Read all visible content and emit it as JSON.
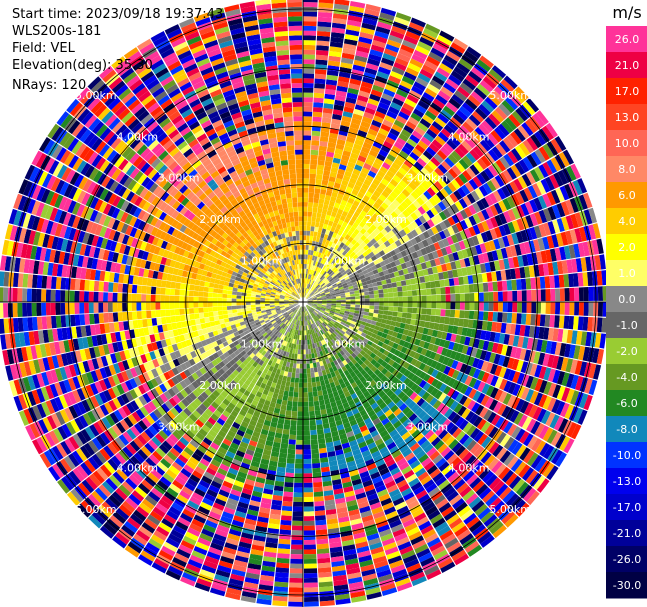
{
  "header": {
    "start_time": "Start time: 2023/09/18 19:37:43",
    "instrument": "WLS200s-181",
    "field": "Field: VEL",
    "elevation": "Elevation(deg): 35.30",
    "nrays": "NRays: 120"
  },
  "chart_data": {
    "type": "heatmap",
    "projection": "polar-ppi",
    "field": "VEL",
    "n_rays": 120,
    "range_rings_km": [
      1,
      2,
      3,
      4,
      5
    ],
    "range_ring_labels": [
      "1.00km",
      "2.00km",
      "3.00km",
      "4.00km",
      "5.00km"
    ],
    "unit_label": "m/s",
    "colorbar_ticks": [
      "26.0",
      "21.0",
      "17.0",
      "13.0",
      "10.0",
      "8.0",
      "6.0",
      "4.0",
      "2.0",
      "1.0",
      "0.0",
      "-1.0",
      "-2.0",
      "-4.0",
      "-6.0",
      "-8.0",
      "-10.0",
      "-13.0",
      "-17.0",
      "-21.0",
      "-26.0",
      "-30.0"
    ],
    "colorbar_colors": [
      "#ff3399",
      "#ee0044",
      "#ff2200",
      "#ff4422",
      "#ff6655",
      "#ff8866",
      "#ff9900",
      "#ffcc00",
      "#ffff00",
      "#ffff66",
      "#888888",
      "#666666",
      "#99cc33",
      "#669922",
      "#228822",
      "#1188bb",
      "#0033ff",
      "#0000ee",
      "#0000cc",
      "#000099",
      "#000066",
      "#000044"
    ],
    "pattern": {
      "inner_range_km": 2.3,
      "outer_noise_start_km": 3.1,
      "positive_sector": "north-west to east (yellow/orange)",
      "negative_sector": "south-west to south-east (grey/green)"
    }
  }
}
